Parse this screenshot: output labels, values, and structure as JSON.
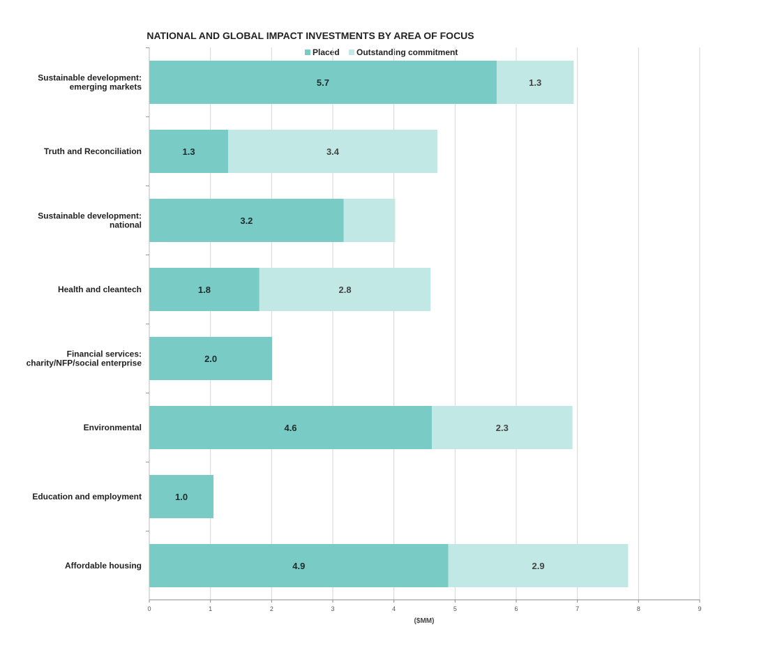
{
  "chart_data": {
    "type": "bar",
    "orientation": "horizontal",
    "stacked": true,
    "title": "NATIONAL AND GLOBAL IMPACT INVESTMENTS BY AREA OF FOCUS",
    "xlabel": "($MM)",
    "ylabel": "",
    "xlim": [
      0,
      9
    ],
    "xticks": [
      "0",
      "1",
      "2",
      "3",
      "4",
      "5",
      "6",
      "7",
      "8",
      "9"
    ],
    "grid": true,
    "legend_position": "top",
    "categories": [
      "Sustainable development: emerging markets",
      "Truth and Reconciliation",
      "Sustainable development: national",
      "Health and cleantech",
      "Financial services: charity/NFP/social enterprise",
      "Environmental",
      "Education and employment",
      "Affordable housing"
    ],
    "category_lines": [
      [
        "Sustainable development:",
        "emerging markets"
      ],
      [
        "Truth and Reconciliation"
      ],
      [
        "Sustainable development:",
        "national"
      ],
      [
        "Health and cleantech"
      ],
      [
        "Financial services:",
        "charity/NFP/social enterprise"
      ],
      [
        "Environmental"
      ],
      [
        "Education and employment"
      ],
      [
        "Affordable housing"
      ]
    ],
    "series": [
      {
        "name": "Placed",
        "color": "#79cbc6",
        "values": [
          5.68,
          1.29,
          3.18,
          1.8,
          2.01,
          4.62,
          1.05,
          4.89
        ],
        "labels": [
          "5.7",
          "1.3",
          "3.2",
          "1.8",
          "2.0",
          "4.6",
          "1.0",
          "4.9"
        ]
      },
      {
        "name": "Outstanding commitment",
        "color": "#c1e8e4",
        "values": [
          1.26,
          3.42,
          0.84,
          2.8,
          0,
          2.3,
          0,
          2.94
        ],
        "labels": [
          "1.3",
          "3.4",
          "",
          "2.8",
          "",
          "2.3",
          "",
          "2.9"
        ]
      }
    ]
  }
}
